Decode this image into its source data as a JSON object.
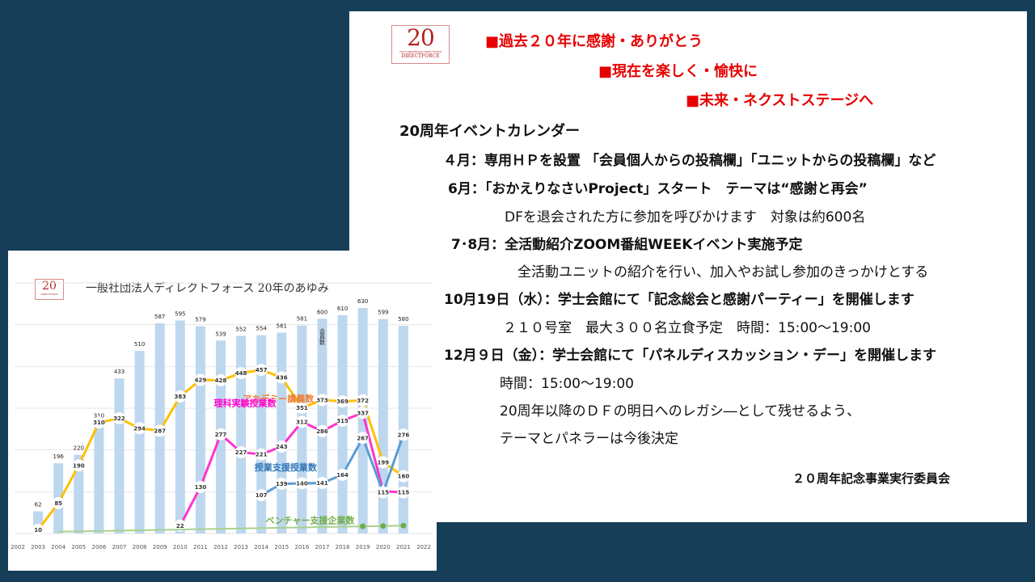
{
  "slide": {
    "logo": {
      "number": "20",
      "caption": "DIRECTFORCE",
      "tagline": "20TH ANNIVERSARY DIRECTFORCE"
    },
    "slogans": [
      "■過去２０年に感謝・ありがとう",
      "■現在を楽しく・愉快に",
      "■未来・ネクストステージへ"
    ],
    "calendar_title": "20周年イベントカレンダー",
    "lines": [
      "４月：専用ＨＰを設置 「会員個人からの投稿欄」「ユニットからの投稿欄」など",
      "6月：「おかえりなさいProject」スタート　テーマは“感謝と再会”",
      "DFを退会された方に参加を呼びかけます　対象は約600名",
      "7･8月：全活動紹介ZOOM番組WEEKイベント実施予定",
      "全活動ユニットの紹介を行い、加入やお試し参加のきっかけとする",
      "10月19日（水）：学士会館にて「記念総会と感謝パーティー」を開催します",
      "２１０号室　最大３００名立食予定　時間：15:00～19:00",
      "12月９日（金）：学士会館にて「パネルディスカッション・デー」を開催します",
      "時間：15:00～19:00",
      "20周年以降のＤＦの明日へのレガシ―として残せるよう、",
      "テーマとパネラーは今後決定"
    ],
    "committee": "２０周年記念事業実行委員会"
  },
  "chart_data": {
    "type": "bar",
    "title": "一般社団法人ディレクトフォース 20年のあゆみ",
    "logo_number": "20",
    "logo_caption": "DIRECTFORCE",
    "categories": [
      "2002",
      "2003",
      "2004",
      "2005",
      "2006",
      "2007",
      "2008",
      "2009",
      "2010",
      "2011",
      "2012",
      "2013",
      "2014",
      "2015",
      "2016",
      "2017",
      "2018",
      "2019",
      "2020",
      "2021",
      "2022"
    ],
    "series": [
      {
        "name": "会員数",
        "kind": "bar",
        "color": "#bdd7ee",
        "values": [
          null,
          62,
          196,
          220,
          310,
          433,
          510,
          587,
          595,
          579,
          539,
          552,
          554,
          561,
          581,
          600,
          610,
          630,
          599,
          580,
          null
        ]
      },
      {
        "name": "アカデミー講義数",
        "kind": "line",
        "color": "#ffc000",
        "label_color": "#ed7d31",
        "values": [
          null,
          10,
          85,
          190,
          310,
          322,
          294,
          287,
          383,
          429,
          428,
          448,
          457,
          436,
          351,
          373,
          369,
          372,
          199,
          160,
          null
        ]
      },
      {
        "name": "理科実験授業数",
        "kind": "line",
        "color": "#ff33cc",
        "label_color": "#ff00cc",
        "values": [
          null,
          null,
          null,
          null,
          null,
          null,
          null,
          null,
          22,
          130,
          277,
          227,
          221,
          243,
          312,
          286,
          315,
          337,
          118,
          115,
          null
        ]
      },
      {
        "name": "授業支援授業数",
        "kind": "line",
        "color": "#5b9bd5",
        "label_color": "#2e75b6",
        "values": [
          null,
          null,
          null,
          null,
          null,
          null,
          null,
          null,
          null,
          null,
          null,
          null,
          107,
          139,
          140,
          141,
          164,
          267,
          115,
          276,
          null
        ]
      },
      {
        "name": "ベンチャー支援企業数",
        "kind": "line",
        "color": "#a9d18e",
        "label_color": "#70ad47",
        "values": [
          null,
          null,
          5,
          6,
          7,
          8,
          9,
          10,
          11,
          12,
          13,
          14,
          15,
          16,
          17,
          18,
          19,
          20,
          21,
          22,
          null
        ]
      }
    ],
    "ylim": [
      0,
      700
    ],
    "legend": "inline labels"
  }
}
